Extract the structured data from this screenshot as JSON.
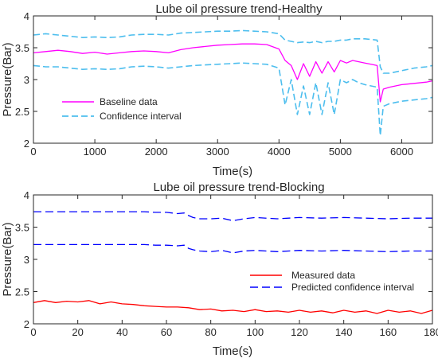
{
  "colors": {
    "healthy_baseline": "#ff00ff",
    "healthy_ci": "#4dbeee",
    "blocking_measured": "#ff0000",
    "blocking_ci": "#0000ff",
    "axis": "#262626"
  },
  "chart_data": [
    {
      "type": "line",
      "title": "Lube oil pressure trend-Healthy",
      "xlabel": "Time(s)",
      "ylabel": "Pressure(Bar)",
      "xlim": [
        0,
        6500
      ],
      "ylim": [
        2,
        4
      ],
      "xticks": [
        0,
        1000,
        2000,
        3000,
        4000,
        5000,
        6000
      ],
      "yticks": [
        2,
        2.5,
        3,
        3.5,
        4
      ],
      "legend_position": "lower-left",
      "series": [
        {
          "name": "Baseline data",
          "style": "solid",
          "x": [
            0,
            200,
            400,
            600,
            800,
            1000,
            1200,
            1400,
            1600,
            1800,
            2000,
            2200,
            2400,
            2600,
            2800,
            3000,
            3200,
            3400,
            3600,
            3800,
            4000,
            4100,
            4200,
            4300,
            4400,
            4500,
            4600,
            4700,
            4800,
            4900,
            5000,
            5100,
            5200,
            5300,
            5400,
            5500,
            5600,
            5650,
            5700,
            5800,
            6000,
            6200,
            6400,
            6500
          ],
          "values": [
            3.42,
            3.44,
            3.46,
            3.44,
            3.41,
            3.43,
            3.4,
            3.42,
            3.44,
            3.45,
            3.44,
            3.42,
            3.47,
            3.5,
            3.52,
            3.54,
            3.55,
            3.56,
            3.56,
            3.55,
            3.48,
            3.3,
            3.22,
            3.0,
            3.25,
            3.05,
            3.28,
            3.1,
            3.28,
            3.12,
            3.3,
            3.26,
            3.3,
            3.28,
            3.26,
            3.24,
            3.22,
            2.65,
            2.85,
            2.88,
            2.92,
            2.94,
            2.96,
            2.98
          ]
        },
        {
          "name": "Confidence interval",
          "style": "dashed",
          "bound": "upper",
          "x": [
            0,
            200,
            400,
            600,
            800,
            1000,
            1200,
            1400,
            1600,
            1800,
            2000,
            2200,
            2400,
            2600,
            2800,
            3000,
            3200,
            3400,
            3600,
            3800,
            4000,
            4100,
            4200,
            4300,
            4400,
            4500,
            4600,
            4700,
            4800,
            4900,
            5000,
            5100,
            5200,
            5300,
            5400,
            5500,
            5600,
            5650,
            5700,
            5800,
            6000,
            6200,
            6400,
            6500
          ],
          "values": [
            3.7,
            3.72,
            3.7,
            3.68,
            3.66,
            3.67,
            3.66,
            3.67,
            3.7,
            3.71,
            3.71,
            3.7,
            3.73,
            3.74,
            3.75,
            3.76,
            3.76,
            3.77,
            3.76,
            3.75,
            3.72,
            3.62,
            3.6,
            3.58,
            3.59,
            3.58,
            3.6,
            3.58,
            3.6,
            3.6,
            3.62,
            3.62,
            3.64,
            3.64,
            3.64,
            3.63,
            3.62,
            3.2,
            3.1,
            3.1,
            3.14,
            3.18,
            3.2,
            3.22
          ]
        },
        {
          "name": "",
          "style": "dashed",
          "bound": "lower",
          "x": [
            0,
            200,
            400,
            600,
            800,
            1000,
            1200,
            1400,
            1600,
            1800,
            2000,
            2200,
            2400,
            2600,
            2800,
            3000,
            3200,
            3400,
            3600,
            3800,
            4000,
            4100,
            4200,
            4300,
            4400,
            4500,
            4600,
            4700,
            4800,
            4900,
            5000,
            5100,
            5200,
            5300,
            5400,
            5500,
            5600,
            5650,
            5700,
            5800,
            6000,
            6200,
            6400,
            6500
          ],
          "values": [
            3.22,
            3.2,
            3.2,
            3.18,
            3.16,
            3.17,
            3.16,
            3.17,
            3.2,
            3.21,
            3.2,
            3.18,
            3.2,
            3.22,
            3.23,
            3.24,
            3.25,
            3.26,
            3.25,
            3.24,
            3.18,
            2.6,
            3.0,
            2.45,
            2.9,
            2.45,
            2.95,
            2.45,
            2.95,
            2.45,
            3.0,
            2.95,
            3.0,
            2.95,
            2.92,
            2.9,
            2.88,
            2.12,
            2.58,
            2.62,
            2.66,
            2.68,
            2.7,
            2.72
          ]
        }
      ]
    },
    {
      "type": "line",
      "title": "Lube oil pressure trend-Blocking",
      "xlabel": "Time(s)",
      "ylabel": "Pressure(Bar)",
      "xlim": [
        0,
        180
      ],
      "ylim": [
        2,
        4
      ],
      "xticks": [
        0,
        20,
        40,
        60,
        80,
        100,
        120,
        140,
        160,
        180
      ],
      "yticks": [
        2,
        2.5,
        3,
        3.5,
        4
      ],
      "legend_position": "right",
      "series": [
        {
          "name": "Measured data",
          "style": "solid",
          "x": [
            0,
            5,
            10,
            15,
            20,
            25,
            30,
            35,
            40,
            45,
            50,
            55,
            60,
            65,
            70,
            75,
            80,
            85,
            90,
            95,
            100,
            105,
            110,
            115,
            120,
            125,
            130,
            135,
            140,
            145,
            150,
            155,
            160,
            165,
            170,
            175,
            180
          ],
          "values": [
            2.33,
            2.36,
            2.33,
            2.35,
            2.34,
            2.36,
            2.31,
            2.34,
            2.31,
            2.3,
            2.28,
            2.27,
            2.26,
            2.26,
            2.25,
            2.22,
            2.23,
            2.2,
            2.21,
            2.19,
            2.22,
            2.19,
            2.2,
            2.18,
            2.21,
            2.18,
            2.2,
            2.17,
            2.21,
            2.18,
            2.2,
            2.16,
            2.21,
            2.18,
            2.2,
            2.16,
            2.21
          ]
        },
        {
          "name": "Predicted confidence interval",
          "style": "dashed",
          "bound": "upper",
          "x": [
            0,
            10,
            20,
            30,
            40,
            50,
            55,
            60,
            65,
            68,
            70,
            72,
            75,
            80,
            85,
            90,
            95,
            100,
            110,
            120,
            130,
            140,
            150,
            160,
            170,
            180
          ],
          "values": [
            3.74,
            3.74,
            3.74,
            3.74,
            3.74,
            3.74,
            3.73,
            3.73,
            3.71,
            3.72,
            3.68,
            3.65,
            3.63,
            3.63,
            3.64,
            3.6,
            3.63,
            3.65,
            3.63,
            3.65,
            3.64,
            3.65,
            3.64,
            3.63,
            3.64,
            3.64
          ]
        },
        {
          "name": "",
          "style": "dashed",
          "bound": "lower",
          "x": [
            0,
            10,
            20,
            30,
            40,
            50,
            55,
            60,
            65,
            68,
            70,
            72,
            75,
            80,
            85,
            90,
            95,
            100,
            110,
            120,
            130,
            140,
            150,
            160,
            170,
            180
          ],
          "values": [
            3.23,
            3.23,
            3.23,
            3.23,
            3.23,
            3.23,
            3.22,
            3.22,
            3.21,
            3.22,
            3.17,
            3.15,
            3.13,
            3.12,
            3.14,
            3.1,
            3.13,
            3.14,
            3.12,
            3.14,
            3.13,
            3.14,
            3.13,
            3.12,
            3.13,
            3.13
          ]
        }
      ]
    }
  ]
}
